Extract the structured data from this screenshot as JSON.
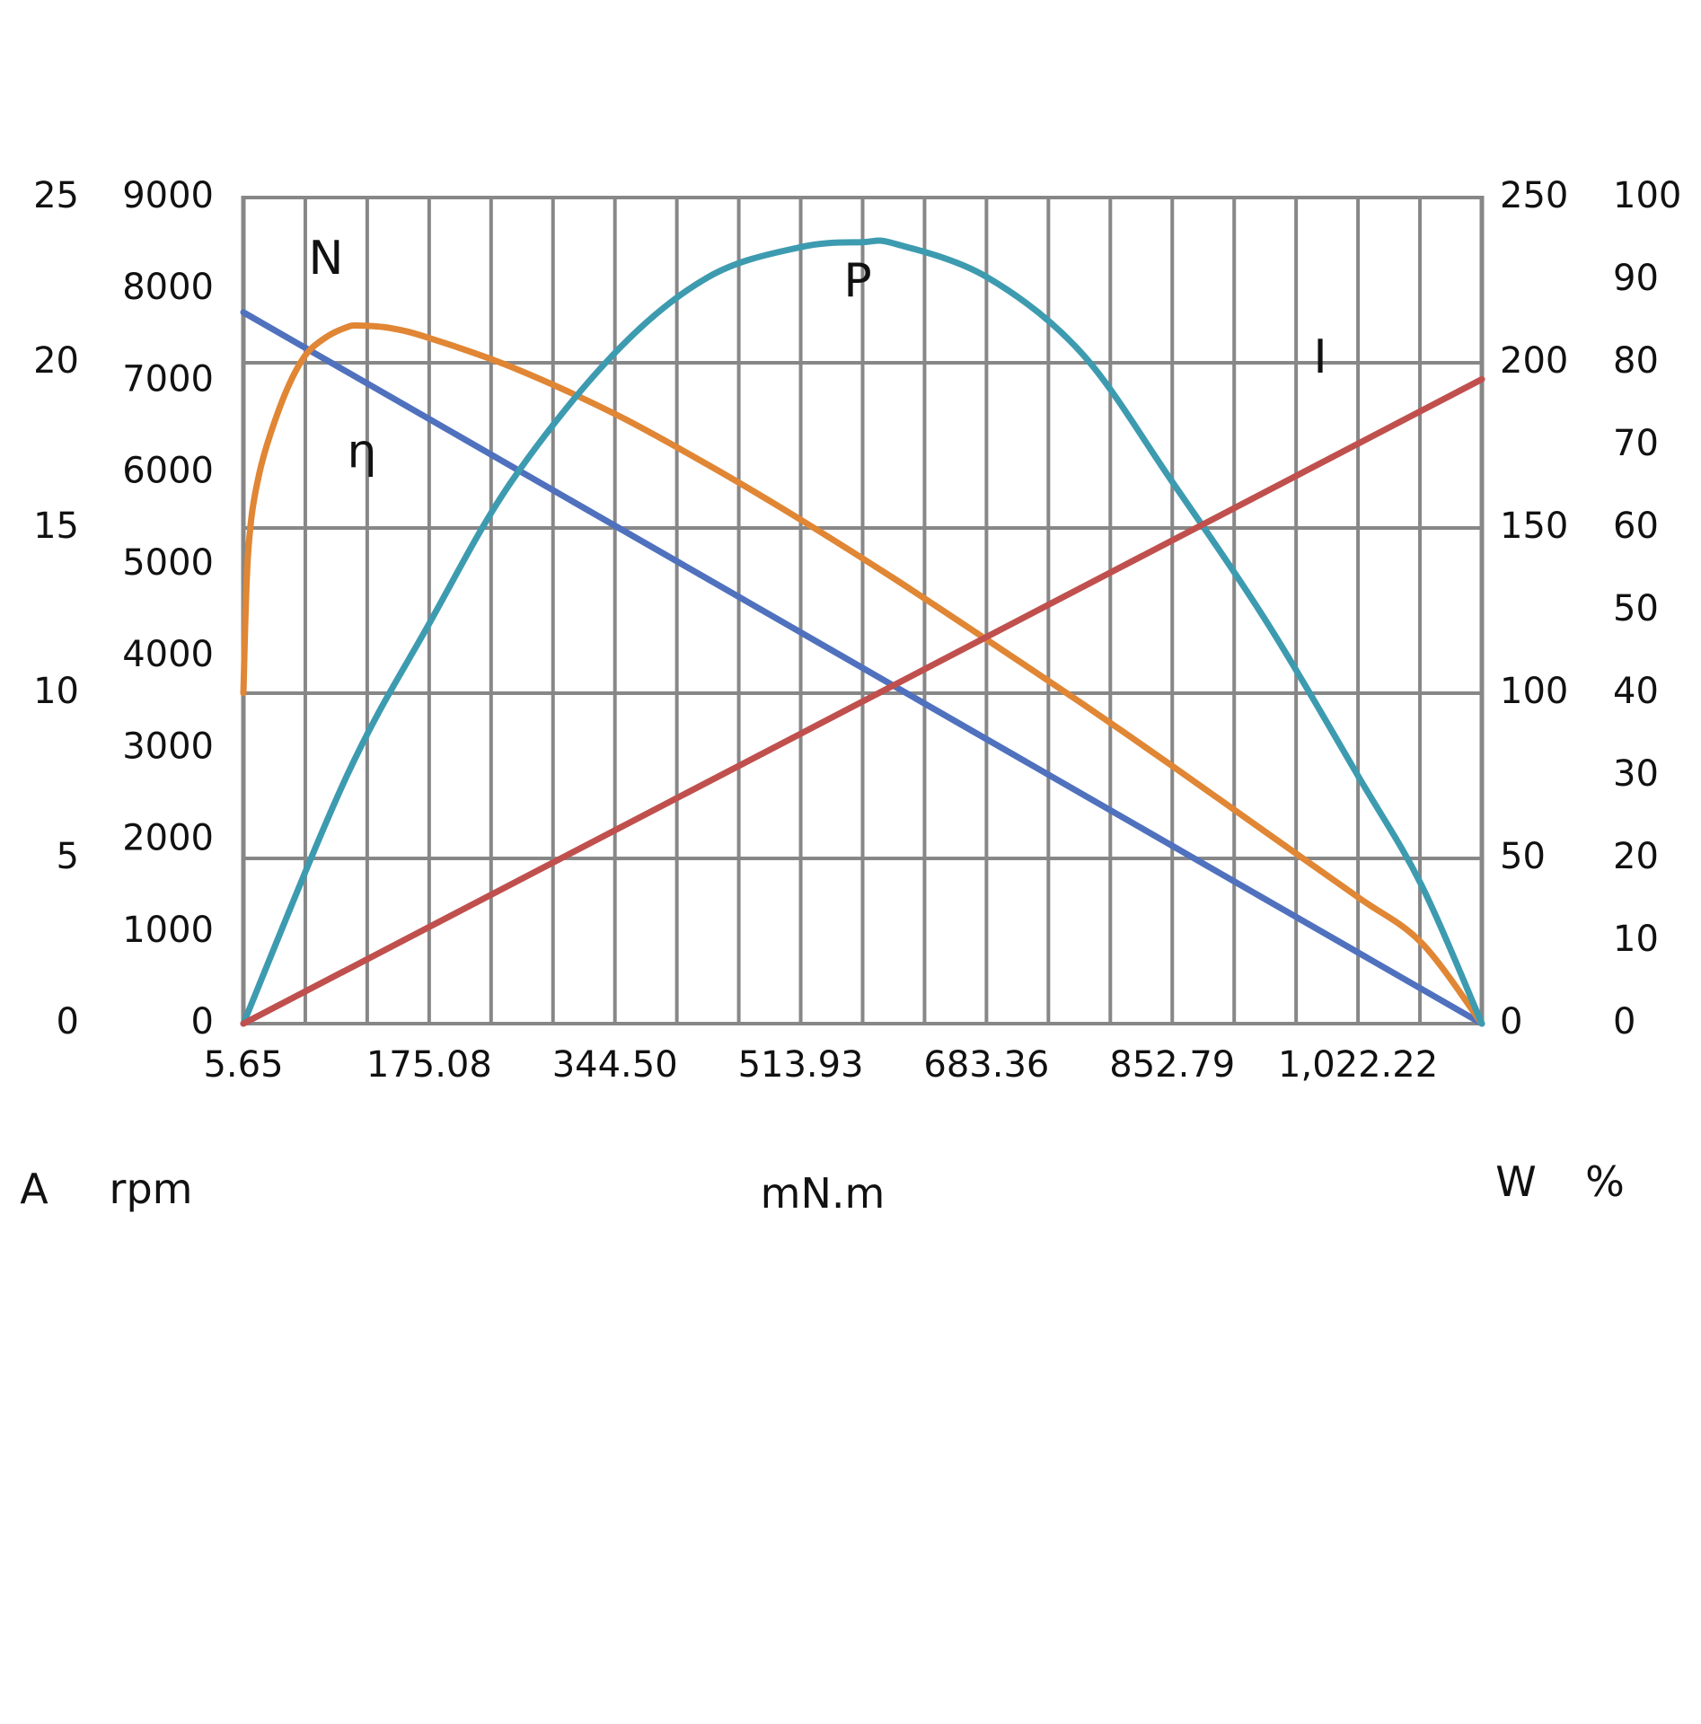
{
  "chart_data": {
    "type": "line",
    "title": "",
    "xlabel": "mN.m",
    "x_ticks": [
      "5.65",
      "175.08",
      "344.50",
      "513.93",
      "683.36",
      "852.79",
      "1,022.22"
    ],
    "x_range": [
      5.65,
      1135.2
    ],
    "grid": true,
    "axes": {
      "current": {
        "unit": "A",
        "range": [
          0,
          25
        ],
        "ticks": [
          "0",
          "5",
          "10",
          "15",
          "20",
          "25"
        ],
        "side": "left-outer"
      },
      "speed": {
        "unit": "rpm",
        "range": [
          0,
          9000
        ],
        "ticks": [
          "0",
          "1000",
          "2000",
          "3000",
          "4000",
          "5000",
          "6000",
          "7000",
          "8000",
          "9000"
        ],
        "side": "left-inner"
      },
      "power": {
        "unit": "W",
        "range": [
          0,
          250
        ],
        "ticks": [
          "0",
          "50",
          "100",
          "150",
          "200",
          "250"
        ],
        "side": "right-inner"
      },
      "efficiency": {
        "unit": "%",
        "range": [
          0,
          100
        ],
        "ticks": [
          "0",
          "10",
          "20",
          "30",
          "40",
          "50",
          "60",
          "70",
          "80",
          "90",
          "100"
        ],
        "side": "right-outer"
      }
    },
    "series": [
      {
        "name": "N",
        "axis": "speed",
        "color": "#4F71BE",
        "x": [
          5.65,
          1135.2
        ],
        "y": [
          7750,
          0
        ]
      },
      {
        "name": "η",
        "axis": "efficiency",
        "color": "#E08634",
        "x": [
          5.65,
          10,
          20,
          40,
          60,
          80,
          100,
          112,
          140,
          175.08,
          250,
          344.5,
          430,
          513.93,
          600,
          683.36,
          770,
          852.79,
          940,
          1022.22,
          1080,
          1135.2
        ],
        "y": [
          40,
          57,
          66.5,
          75,
          80.5,
          83,
          84.3,
          84.5,
          84.2,
          83,
          79.5,
          73.8,
          67.6,
          61,
          53.8,
          46.5,
          38.8,
          31.2,
          23,
          15.3,
          9.8,
          0
        ]
      },
      {
        "name": "P",
        "axis": "power",
        "color": "#3D9BB0",
        "x": [
          5.65,
          100,
          175.08,
          250,
          344.5,
          430,
          513.93,
          570,
          600,
          683.36,
          770,
          852.79,
          940,
          1022.22,
          1080,
          1135.2
        ],
        "y": [
          0,
          75,
          121,
          164,
          203,
          226,
          235,
          236.5,
          236,
          226,
          203,
          164,
          121,
          75,
          42,
          0
        ]
      },
      {
        "name": "I",
        "axis": "current",
        "color": "#C0504D",
        "x": [
          5.65,
          1135.2
        ],
        "y": [
          0,
          19.5
        ]
      }
    ],
    "annotations": [
      "N",
      "η",
      "P",
      "I"
    ]
  }
}
